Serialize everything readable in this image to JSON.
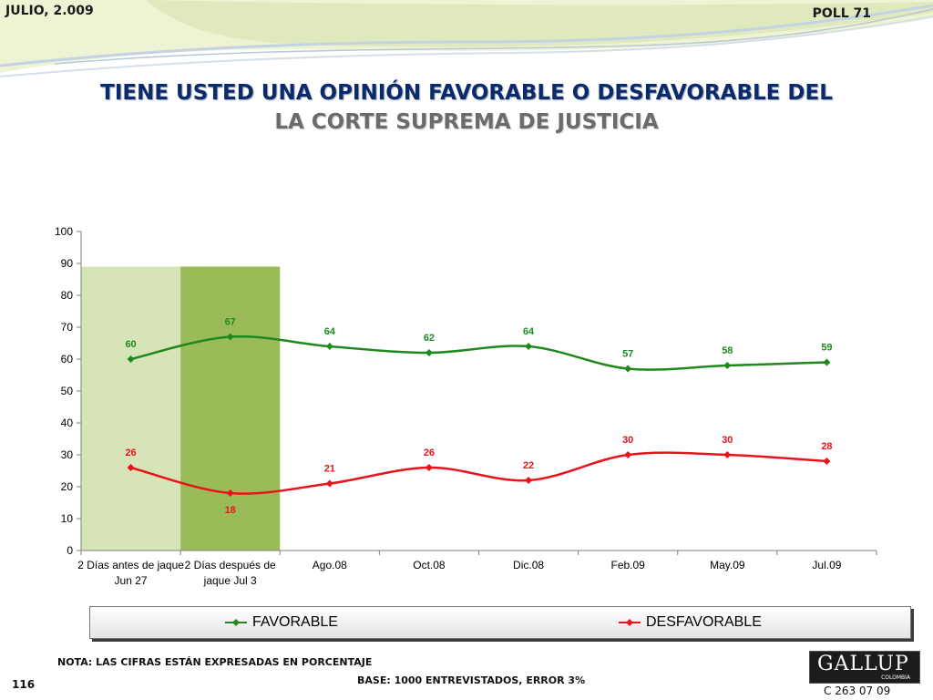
{
  "header": {
    "date": "JULIO, 2.009",
    "poll": "POLL 71"
  },
  "title": {
    "line1": "TIENE USTED UNA OPINIÓN FAVORABLE O DESFAVORABLE DEL",
    "line2": "LA CORTE SUPREMA DE JUSTICIA"
  },
  "chart_data": {
    "type": "line",
    "categories": [
      "2 Días antes de jaque Jun 27",
      "2 Días después de jaque Jul 3",
      "Ago.08",
      "Oct.08",
      "Dic.08",
      "Feb.09",
      "May.09",
      "Jul.09"
    ],
    "category_lines": [
      [
        "2 Días antes de jaque",
        "Jun 27"
      ],
      [
        "2 Días después de",
        "jaque Jul 3"
      ],
      [
        "Ago.08"
      ],
      [
        "Oct.08"
      ],
      [
        "Dic.08"
      ],
      [
        "Feb.09"
      ],
      [
        "May.09"
      ],
      [
        "Jul.09"
      ]
    ],
    "series": [
      {
        "name": "FAVORABLE",
        "color": "#1e8a1e",
        "values": [
          60,
          67,
          64,
          62,
          64,
          57,
          58,
          59
        ]
      },
      {
        "name": "DESFAVORABLE",
        "color": "#e8141b",
        "values": [
          26,
          18,
          21,
          26,
          22,
          30,
          30,
          28
        ]
      }
    ],
    "highlight_bands": [
      {
        "category_index": 0,
        "top_value": 89,
        "color": "#d6e4b8"
      },
      {
        "category_index": 1,
        "top_value": 89,
        "color": "#9bbb59"
      }
    ],
    "ylim": [
      0,
      100
    ],
    "yticks": [
      0,
      10,
      20,
      30,
      40,
      50,
      60,
      70,
      80,
      90,
      100
    ],
    "smooth": true,
    "markers": "diamond",
    "data_labels": true,
    "legend_position": "bottom"
  },
  "footer": {
    "nota": "NOTA: LAS CIFRAS ESTÁN EXPRESADAS EN PORCENTAJE",
    "base": "BASE: 1000 ENTREVISTADOS, ERROR 3%",
    "page_number": "116",
    "code": "C 263 07 09",
    "logo_text": "GALLUP",
    "logo_sub": "COLOMBIA"
  }
}
